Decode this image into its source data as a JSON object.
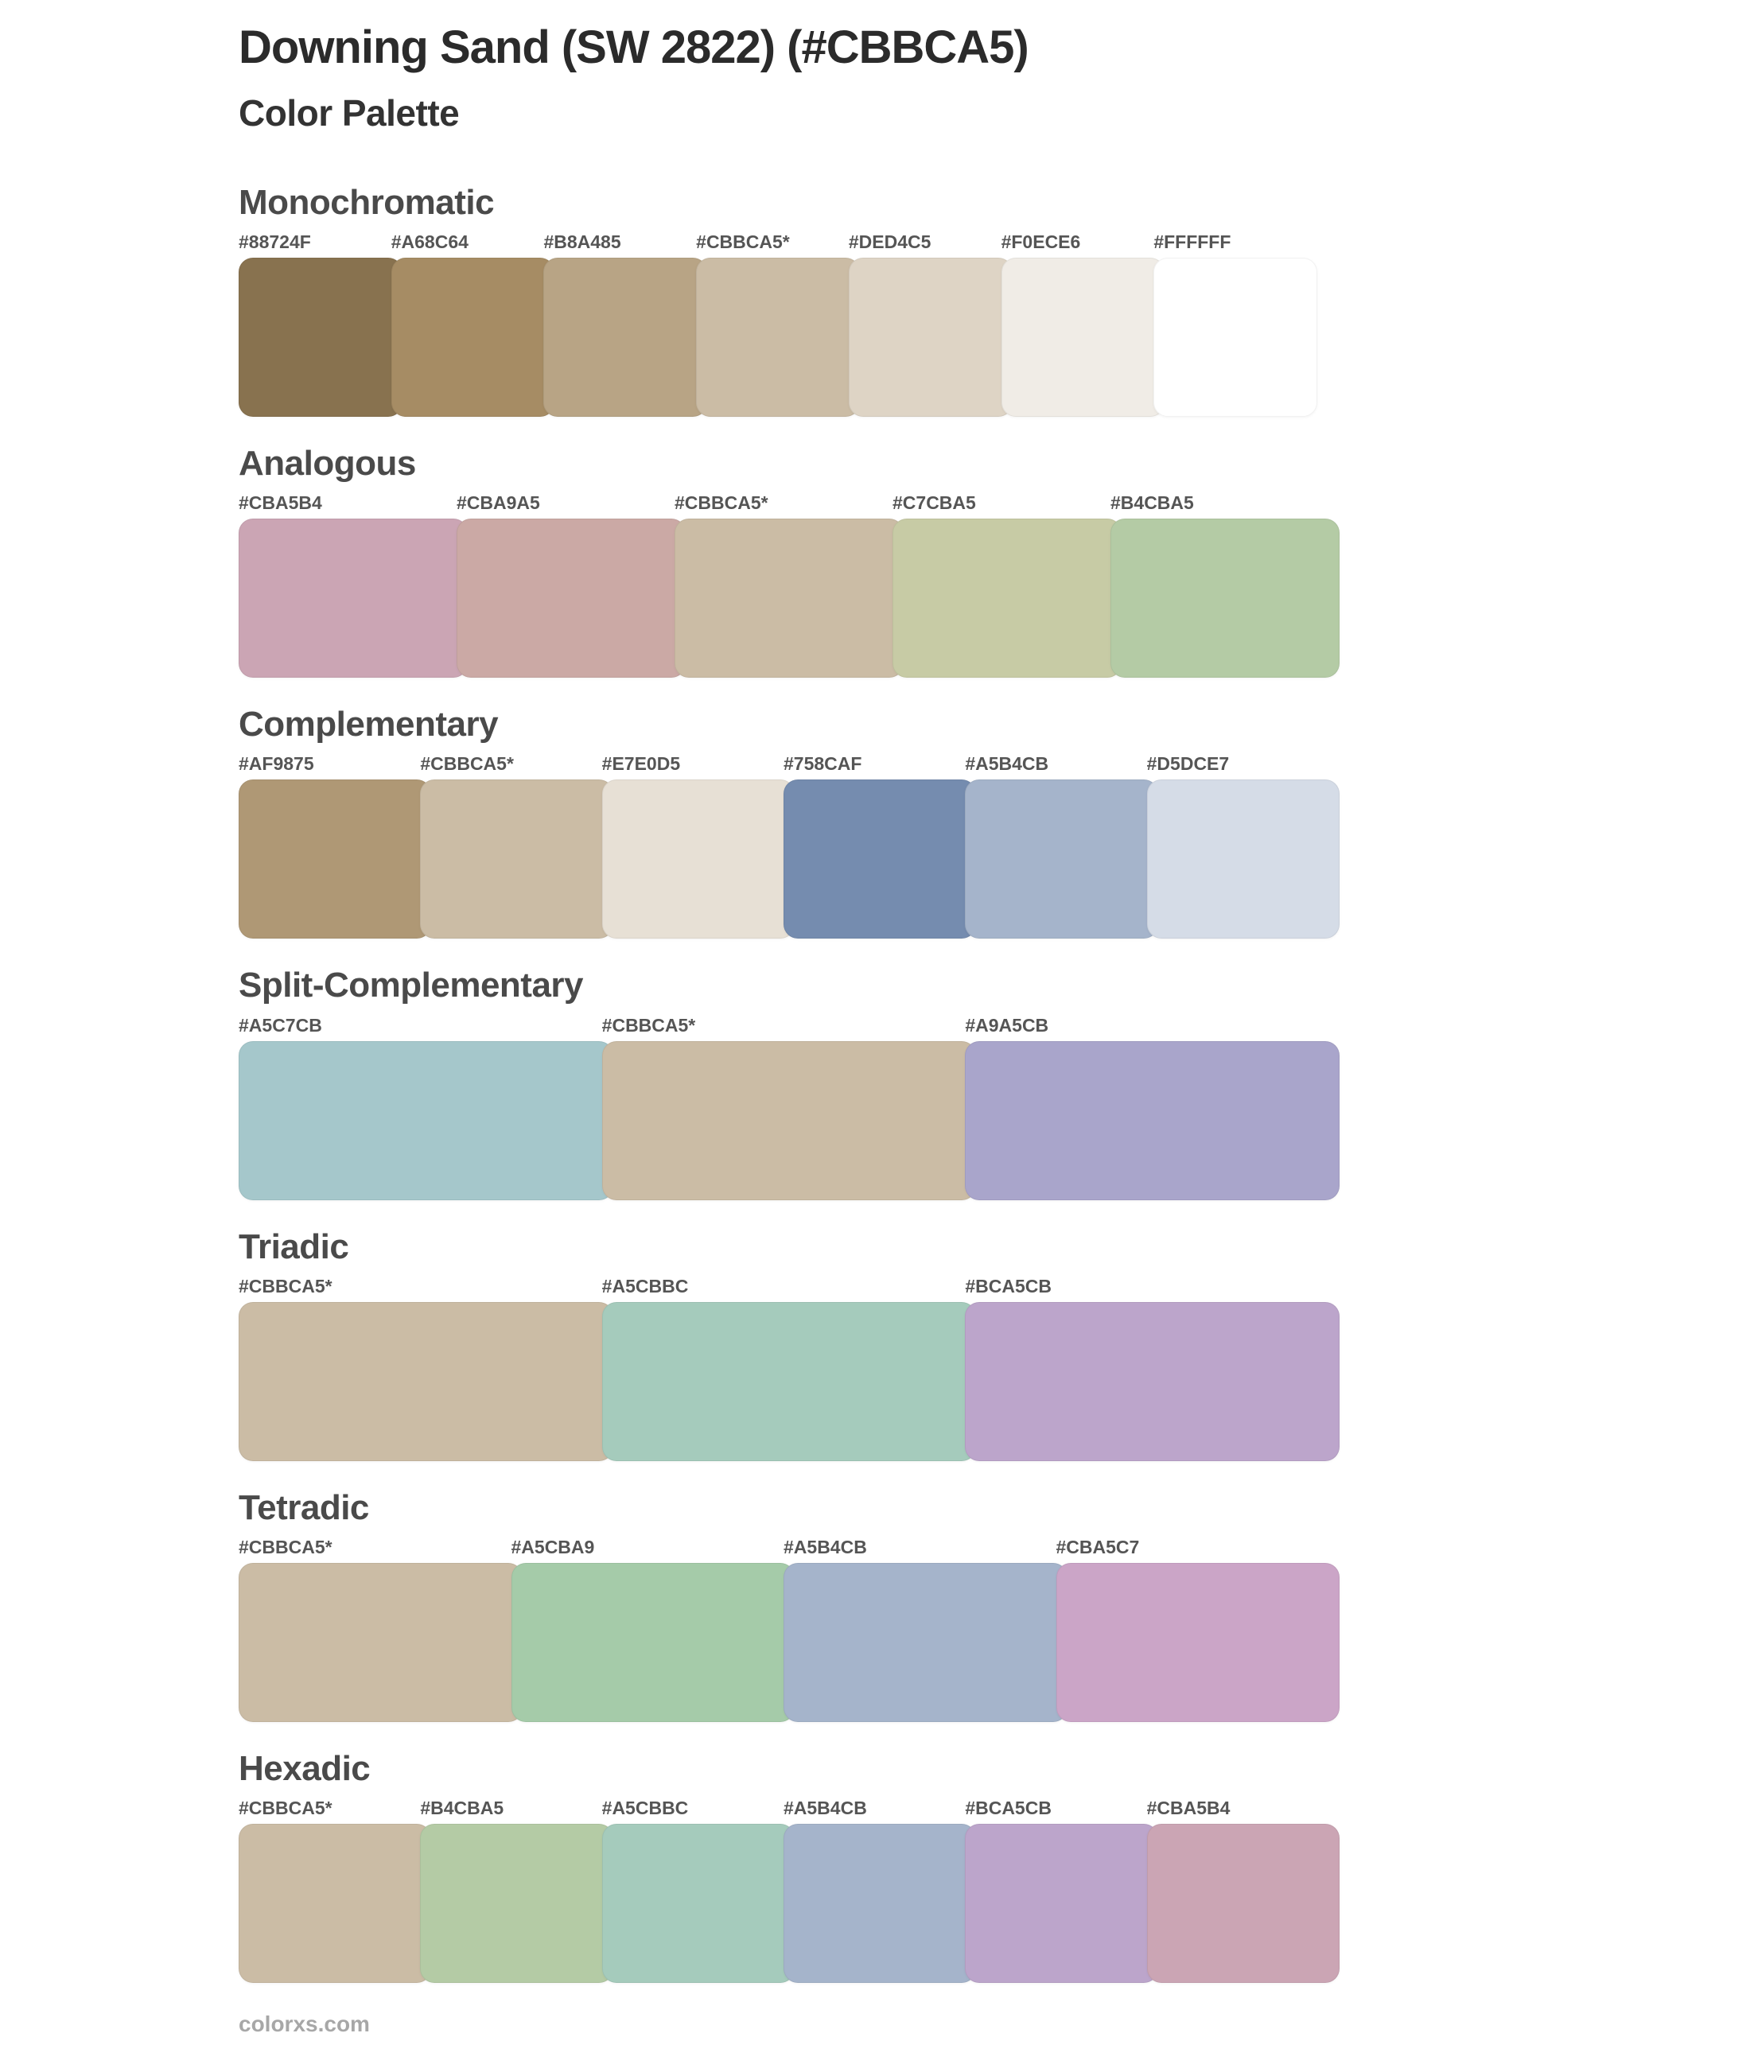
{
  "page": {
    "background": "#ffffff",
    "title": "Downing Sand (SW 2822) (#CBBCA5)",
    "subtitle": "Color Palette",
    "footer": "colorxs.com",
    "title_color": "#2b2b2b",
    "section_heading_color": "#4a4a4a",
    "hex_label_color": "#555555",
    "footer_color": "#a7a7a7"
  },
  "chart_data": {
    "type": "table",
    "title": "Downing Sand (SW 2822) (#CBBCA5)",
    "subtitle": "Color Palette",
    "base_color": {
      "name": "Downing Sand",
      "code": "SW 2822",
      "hex": "#CBBCA5"
    },
    "sections": [
      {
        "name": "Monochromatic",
        "colors": [
          {
            "label": "#88724F",
            "hex": "#88724F"
          },
          {
            "label": "#A68C64",
            "hex": "#A68C64"
          },
          {
            "label": "#B8A485",
            "hex": "#B8A485"
          },
          {
            "label": "#CBBCA5*",
            "hex": "#CBBCA5"
          },
          {
            "label": "#DED4C5",
            "hex": "#DED4C5"
          },
          {
            "label": "#F0ECE6",
            "hex": "#F0ECE6"
          },
          {
            "label": "#FFFFFF",
            "hex": "#FFFFFF"
          }
        ]
      },
      {
        "name": "Analogous",
        "colors": [
          {
            "label": "#CBA5B4",
            "hex": "#CBA5B4"
          },
          {
            "label": "#CBA9A5",
            "hex": "#CBA9A5"
          },
          {
            "label": "#CBBCA5*",
            "hex": "#CBBCA5"
          },
          {
            "label": "#C7CBA5",
            "hex": "#C7CBA5"
          },
          {
            "label": "#B4CBA5",
            "hex": "#B4CBA5"
          }
        ]
      },
      {
        "name": "Complementary",
        "colors": [
          {
            "label": "#AF9875",
            "hex": "#AF9875"
          },
          {
            "label": "#CBBCA5*",
            "hex": "#CBBCA5"
          },
          {
            "label": "#E7E0D5",
            "hex": "#E7E0D5"
          },
          {
            "label": "#758CAF",
            "hex": "#758CAF"
          },
          {
            "label": "#A5B4CB",
            "hex": "#A5B4CB"
          },
          {
            "label": "#D5DCE7",
            "hex": "#D5DCE7"
          }
        ]
      },
      {
        "name": "Split-Complementary",
        "colors": [
          {
            "label": "#A5C7CB",
            "hex": "#A5C7CB"
          },
          {
            "label": "#CBBCA5*",
            "hex": "#CBBCA5"
          },
          {
            "label": "#A9A5CB",
            "hex": "#A9A5CB"
          }
        ]
      },
      {
        "name": "Triadic",
        "colors": [
          {
            "label": "#CBBCA5*",
            "hex": "#CBBCA5"
          },
          {
            "label": "#A5CBBC",
            "hex": "#A5CBBC"
          },
          {
            "label": "#BCA5CB",
            "hex": "#BCA5CB"
          }
        ]
      },
      {
        "name": "Tetradic",
        "colors": [
          {
            "label": "#CBBCA5*",
            "hex": "#CBBCA5"
          },
          {
            "label": "#A5CBA9",
            "hex": "#A5CBA9"
          },
          {
            "label": "#A5B4CB",
            "hex": "#A5B4CB"
          },
          {
            "label": "#CBA5C7",
            "hex": "#CBA5C7"
          }
        ]
      },
      {
        "name": "Hexadic",
        "colors": [
          {
            "label": "#CBBCA5*",
            "hex": "#CBBCA5"
          },
          {
            "label": "#B4CBA5",
            "hex": "#B4CBA5"
          },
          {
            "label": "#A5CBBC",
            "hex": "#A5CBBC"
          },
          {
            "label": "#A5B4CB",
            "hex": "#A5B4CB"
          },
          {
            "label": "#BCA5CB",
            "hex": "#BCA5CB"
          },
          {
            "label": "#CBA5B4",
            "hex": "#CBA5B4"
          }
        ]
      }
    ]
  }
}
